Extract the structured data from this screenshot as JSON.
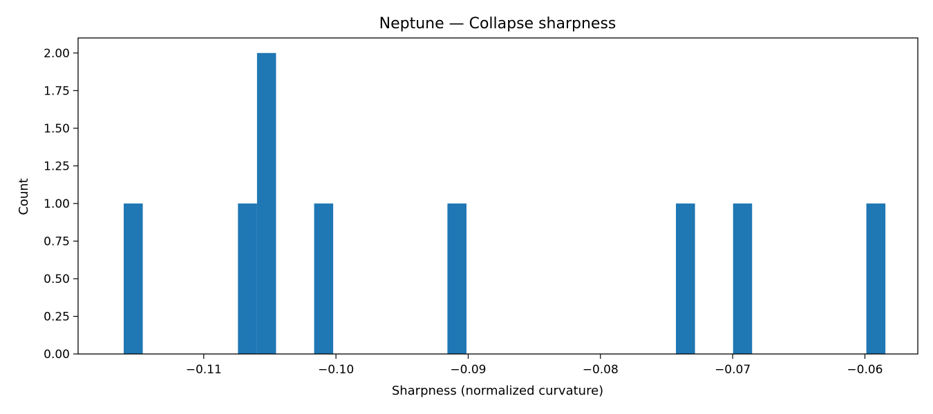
{
  "chart_data": {
    "type": "bar",
    "subtype": "histogram",
    "title": "Neptune — Collapse sharpness",
    "xlabel": "Sharpness (normalized curvature)",
    "ylabel": "Count",
    "xlim": [
      -0.1195,
      -0.056
    ],
    "ylim": [
      0,
      2.1
    ],
    "bin_width": 0.00144,
    "bins": [
      {
        "x0": -0.11605,
        "x1": -0.11461,
        "count": 1
      },
      {
        "x0": -0.10741,
        "x1": -0.10597,
        "count": 1
      },
      {
        "x0": -0.10597,
        "x1": -0.10453,
        "count": 2
      },
      {
        "x0": -0.10165,
        "x1": -0.10021,
        "count": 1
      },
      {
        "x0": -0.09157,
        "x1": -0.09013,
        "count": 1
      },
      {
        "x0": -0.07429,
        "x1": -0.07285,
        "count": 1
      },
      {
        "x0": -0.06997,
        "x1": -0.06853,
        "count": 1
      },
      {
        "x0": -0.05989,
        "x1": -0.05845,
        "count": 1
      }
    ],
    "bar_color": "#1f77b4",
    "x_ticks": [
      {
        "value": -0.11,
        "label": "−0.11"
      },
      {
        "value": -0.1,
        "label": "−0.10"
      },
      {
        "value": -0.09,
        "label": "−0.09"
      },
      {
        "value": -0.08,
        "label": "−0.08"
      },
      {
        "value": -0.07,
        "label": "−0.07"
      },
      {
        "value": -0.06,
        "label": "−0.06"
      }
    ],
    "y_ticks": [
      {
        "value": 0.0,
        "label": "0.00"
      },
      {
        "value": 0.25,
        "label": "0.25"
      },
      {
        "value": 0.5,
        "label": "0.50"
      },
      {
        "value": 0.75,
        "label": "0.75"
      },
      {
        "value": 1.0,
        "label": "1.00"
      },
      {
        "value": 1.25,
        "label": "1.25"
      },
      {
        "value": 1.5,
        "label": "1.50"
      },
      {
        "value": 1.75,
        "label": "1.75"
      },
      {
        "value": 2.0,
        "label": "2.00"
      }
    ],
    "grid": false,
    "legend": "none"
  }
}
